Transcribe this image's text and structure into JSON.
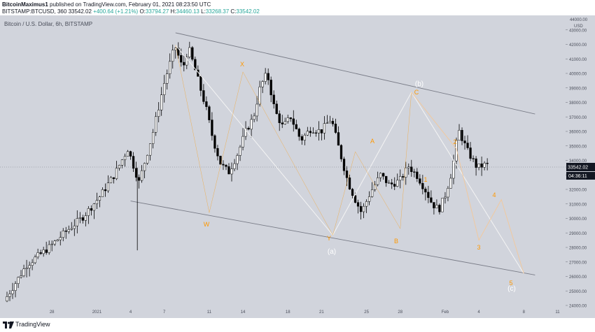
{
  "header": {
    "author": "BitcoinMaximus1",
    "published_text": " published on TradingView.com, February 01, 2021 08:23:50 UTC",
    "symbol": "BITSTAMP:BTCUSD, 360",
    "last": "33542.02",
    "change": "+400.64 (+1.21%)",
    "o_label": "O:",
    "o_value": "33794.27",
    "h_label": "H:",
    "h_value": "34460.13",
    "l_label": "L:",
    "l_value": "33268.37",
    "c_label": "C:",
    "c_value": "33542.02"
  },
  "footer": {
    "logo_text": "TradingView"
  },
  "chart_data": {
    "type": "candlestick",
    "title": "Bitcoin / U.S. Dollar, 6h, BITSTAMP",
    "ylabel": "USD",
    "y_top_label": "44000.00",
    "ylim": [
      24000,
      44000
    ],
    "y_ticks": [
      43000,
      42000,
      41000,
      40000,
      39000,
      38000,
      37000,
      36000,
      35000,
      34000,
      33000,
      32000,
      31000,
      30000,
      29000,
      28000,
      27000,
      26000,
      25000,
      24000
    ],
    "x_tick_labels": [
      "28",
      "2021",
      "4",
      "7",
      "11",
      "14",
      "18",
      "21",
      "25",
      "28",
      "Feb",
      "4",
      "8",
      "11"
    ],
    "price_label": "33542.02",
    "countdown_label": "04:36:11",
    "colors": {
      "background": "#d1d4dc",
      "candle": "#000000",
      "wave": "#ff9800",
      "wave_count_white": "#ffffff",
      "channel": "#787b86"
    },
    "channel_lines": [
      {
        "from": [
          "Jan 8",
          42800
        ],
        "to": [
          "Feb 9",
          37200
        ]
      },
      {
        "from": [
          "Jan 4",
          31200
        ],
        "to": [
          "Feb 9",
          26100
        ]
      }
    ],
    "wave_labels": [
      {
        "text": "X",
        "color": "orange"
      },
      {
        "text": "W",
        "color": "orange"
      },
      {
        "text": "Y",
        "color": "orange"
      },
      {
        "text": "(a)",
        "color": "white"
      },
      {
        "text": "A",
        "color": "orange"
      },
      {
        "text": "B",
        "color": "orange"
      },
      {
        "text": "C",
        "color": "orange"
      },
      {
        "text": "(b)",
        "color": "white"
      },
      {
        "text": "1",
        "color": "orange"
      },
      {
        "text": "2",
        "color": "orange"
      },
      {
        "text": "3",
        "color": "orange"
      },
      {
        "text": "4",
        "color": "orange"
      },
      {
        "text": "5",
        "color": "orange"
      },
      {
        "text": "(c)",
        "color": "white"
      }
    ],
    "projected_path": [
      {
        "t": "Jan 29",
        "price": 38700
      },
      {
        "t": "Feb 2",
        "price": 34800
      },
      {
        "t": "Feb 4",
        "price": 28500
      },
      {
        "t": "Feb 6",
        "price": 31300
      },
      {
        "t": "Feb 8",
        "price": 26200
      }
    ],
    "key_swings": [
      {
        "t": "Jan 8",
        "price": 41950
      },
      {
        "t": "Jan 11",
        "price": 30400
      },
      {
        "t": "Jan 14",
        "price": 40100
      },
      {
        "t": "Jan 22",
        "price": 28850
      },
      {
        "t": "Jan 24",
        "price": 34600
      },
      {
        "t": "Jan 28",
        "price": 29300
      },
      {
        "t": "Jan 29",
        "price": 38700
      }
    ]
  }
}
